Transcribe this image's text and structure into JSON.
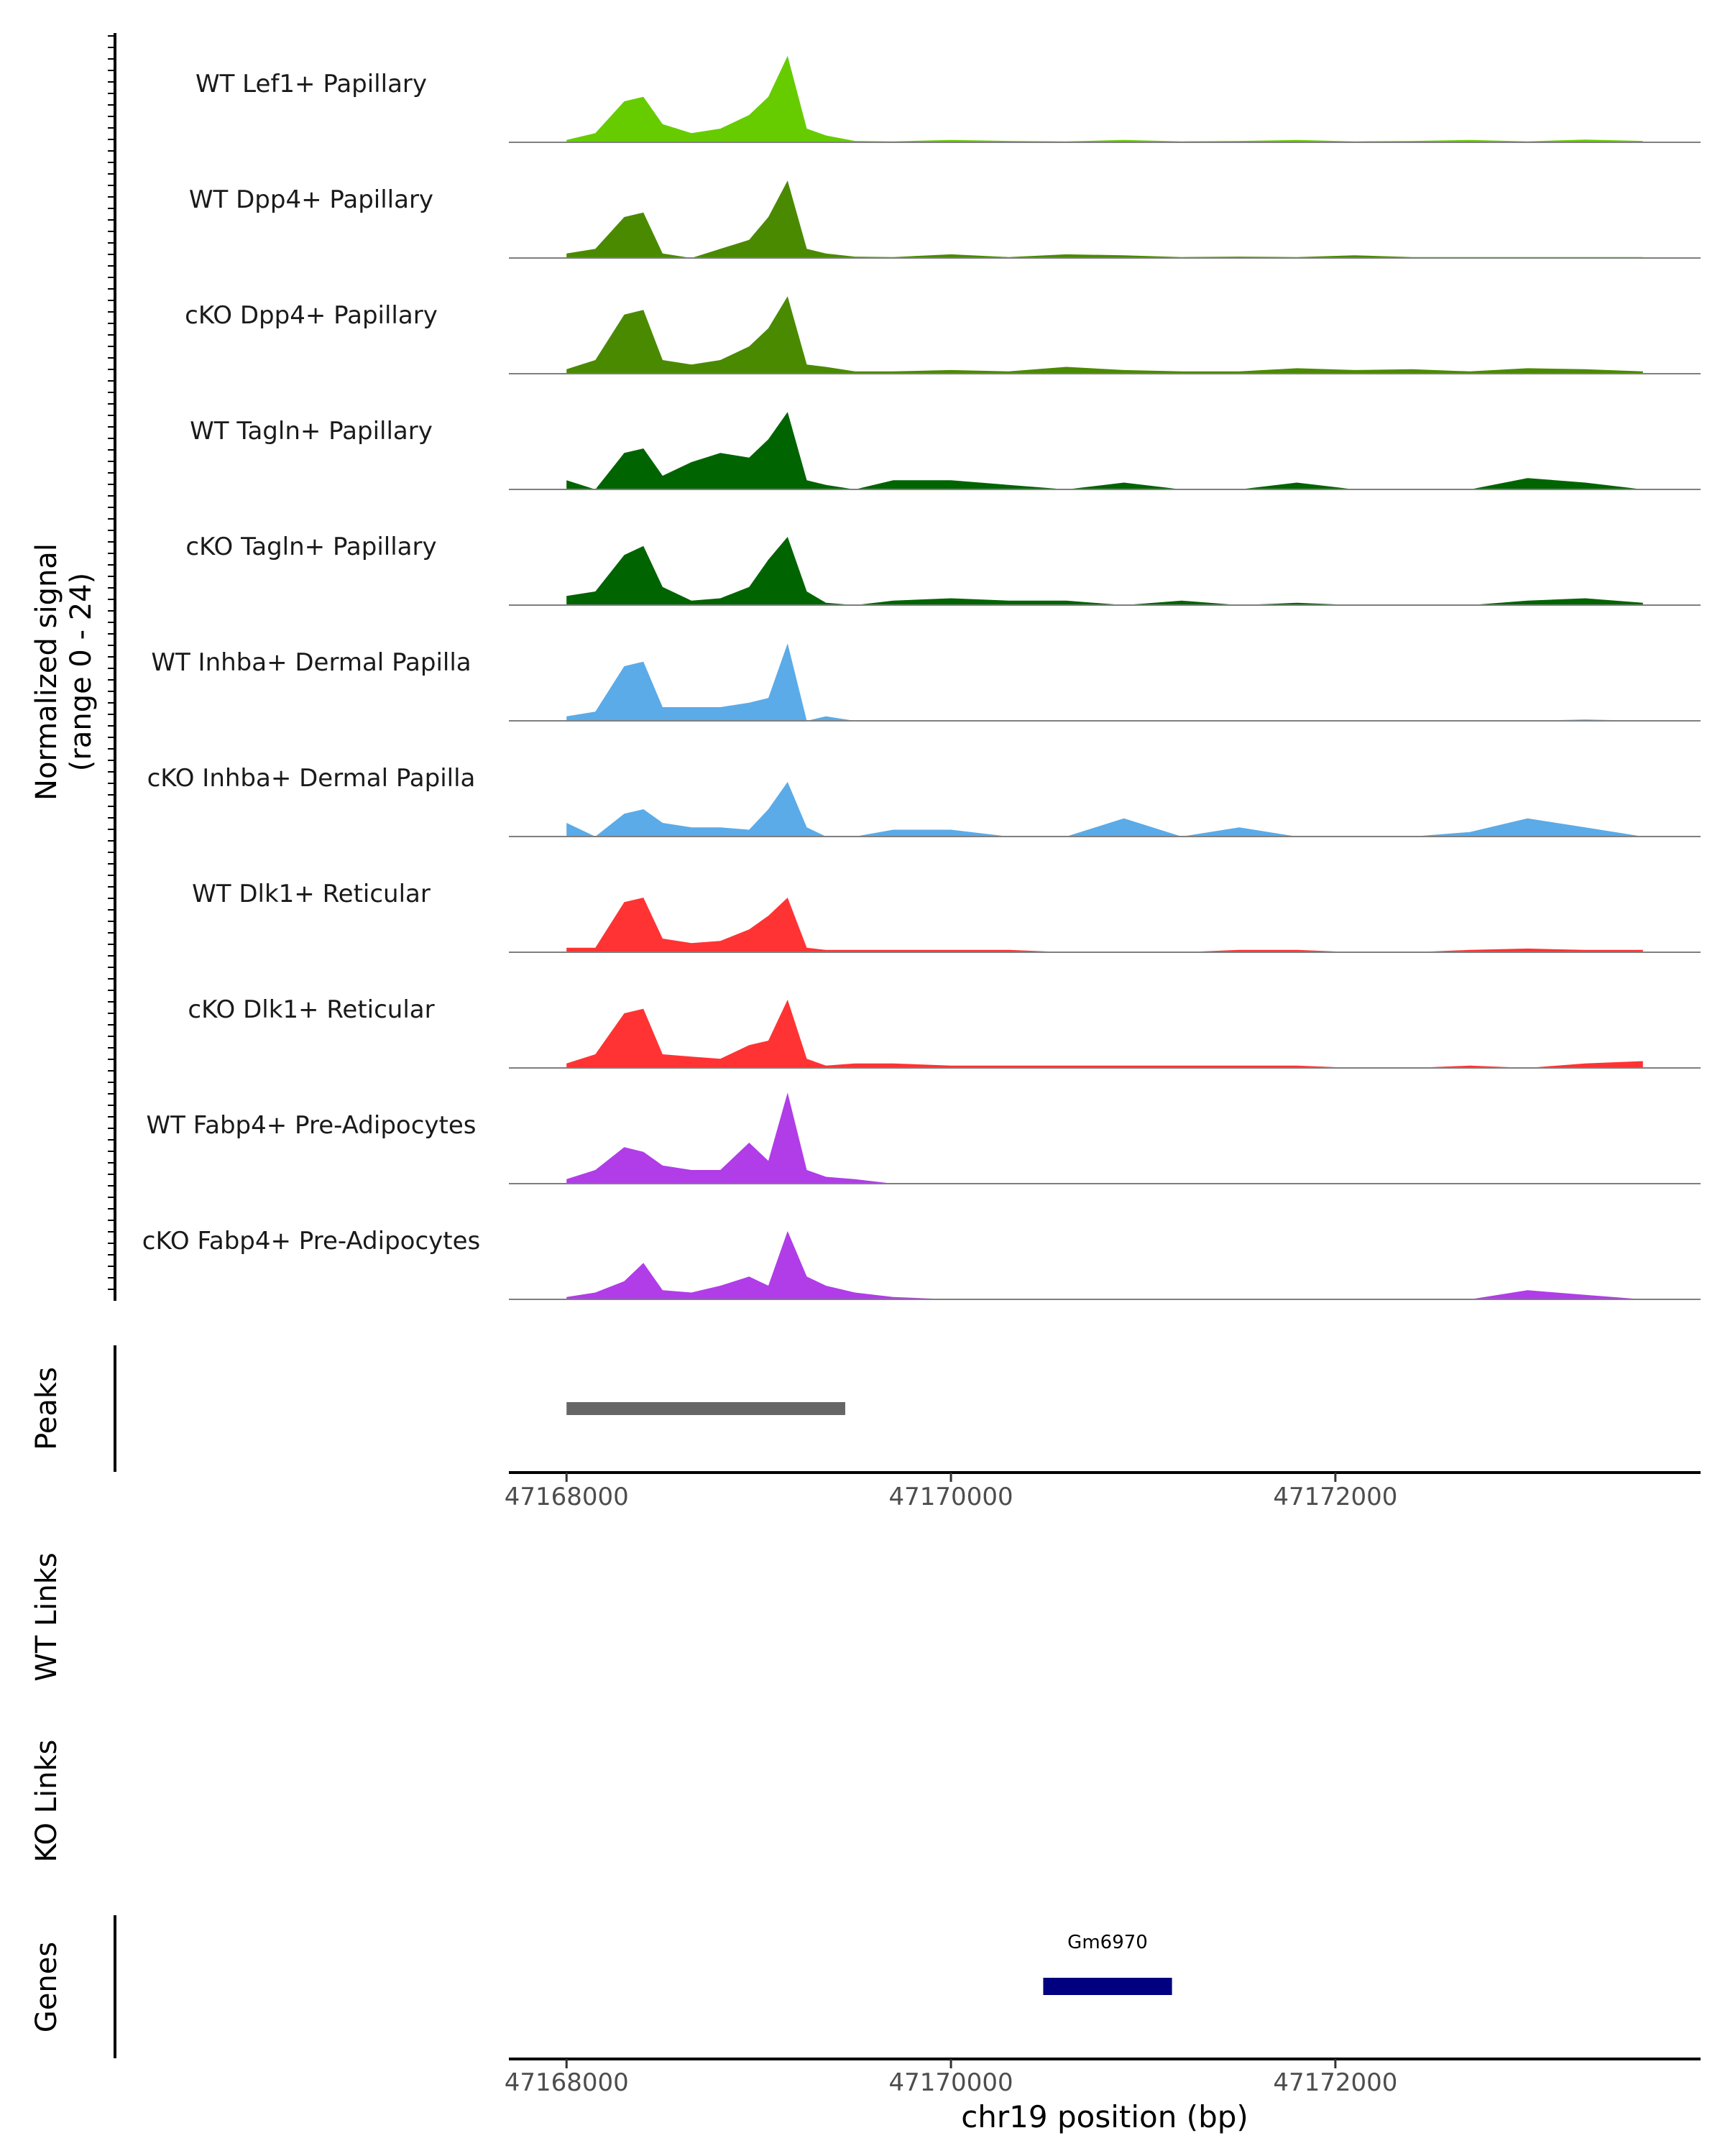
{
  "chart_data": [
    {
      "type": "area",
      "panel": "coverage",
      "ylabel_line1": "Normalized signal",
      "ylabel_line2": "(range 0 - 24)",
      "ylim": [
        0,
        24
      ],
      "xlim": [
        47167700,
        47173900
      ],
      "x_points": [
        47168000,
        47168150,
        47168300,
        47168400,
        47168500,
        47168650,
        47168800,
        47168950,
        47169050,
        47169150,
        47169250,
        47169350,
        47169500,
        47169700,
        47170000,
        47170300,
        47170600,
        47170900,
        47171200,
        47171500,
        47171800,
        47172100,
        47172400,
        47172700,
        47173000,
        47173300,
        47173600
      ],
      "series": [
        {
          "name": "WT Lef1+ Papillary",
          "color": "#66cc00",
          "values": [
            0.5,
            2,
            9,
            10,
            4,
            2,
            3,
            6,
            10,
            19,
            3,
            1.5,
            0.3,
            0.2,
            0.5,
            0.3,
            0.2,
            0.5,
            0.2,
            0.3,
            0.5,
            0.2,
            0.3,
            0.5,
            0.2,
            0.6,
            0.3
          ]
        },
        {
          "name": "WT Dpp4+ Papillary",
          "color": "#4a8a00",
          "values": [
            1,
            2,
            9,
            10,
            1,
            0,
            2,
            4,
            9,
            17,
            2,
            1,
            0.3,
            0.2,
            0.8,
            0.2,
            0.8,
            0.6,
            0.2,
            0.3,
            0.2,
            0.6,
            0.2,
            0.2,
            0.2,
            0.2,
            0.2
          ]
        },
        {
          "name": "cKO Dpp4+ Papillary",
          "color": "#4a8a00",
          "values": [
            1,
            3,
            13,
            14,
            3,
            2,
            3,
            6,
            10,
            17,
            2,
            1.5,
            0.5,
            0.5,
            0.8,
            0.5,
            1.5,
            0.8,
            0.5,
            0.5,
            1.2,
            0.8,
            1,
            0.5,
            1.2,
            1,
            0.5
          ]
        },
        {
          "name": "WT Tagln+ Papillary",
          "color": "#006400",
          "values": [
            2,
            0,
            8,
            9,
            3,
            6,
            8,
            7,
            11,
            17,
            2,
            1,
            0,
            2,
            2,
            1,
            0,
            1.5,
            0,
            0,
            1.5,
            0,
            0,
            0,
            2.5,
            1.5,
            0
          ]
        },
        {
          "name": "cKO Tagln+ Papillary",
          "color": "#006400",
          "values": [
            2,
            3,
            11,
            13,
            4,
            1,
            1.5,
            4,
            10,
            15,
            3,
            0.5,
            0,
            1,
            1.5,
            1,
            1,
            0,
            1,
            0,
            0.5,
            0,
            0,
            0,
            1,
            1.5,
            0.5
          ]
        },
        {
          "name": "WT Inhba+ Dermal Papilla",
          "color": "#5aabe8",
          "values": [
            1,
            2,
            12,
            13,
            3,
            3,
            3,
            4,
            5,
            17,
            0,
            1,
            0,
            0,
            0,
            0,
            0,
            0,
            0,
            0,
            0,
            0,
            0,
            0,
            0,
            0.3,
            0
          ]
        },
        {
          "name": "cKO Inhba+ Dermal Papilla",
          "color": "#5aabe8",
          "values": [
            3,
            0,
            5,
            6,
            3,
            2,
            2,
            1.5,
            6,
            12,
            2,
            0,
            0,
            1.5,
            1.5,
            0,
            0,
            4,
            0,
            2,
            0,
            0,
            0,
            1,
            4,
            2,
            0
          ]
        },
        {
          "name": "WT Dlk1+ Reticular",
          "color": "#ff3333",
          "values": [
            1,
            1,
            11,
            12,
            3,
            2,
            2.5,
            5,
            8,
            12,
            1,
            0.5,
            0.5,
            0.5,
            0.5,
            0.5,
            0,
            0,
            0,
            0.5,
            0.5,
            0,
            0,
            0.5,
            0.8,
            0.5,
            0.5
          ]
        },
        {
          "name": "cKO Dlk1+ Reticular",
          "color": "#ff3333",
          "values": [
            1,
            3,
            12,
            13,
            3,
            2.5,
            2,
            5,
            6,
            15,
            2,
            0.5,
            1,
            1,
            0.5,
            0.5,
            0.5,
            0.5,
            0.5,
            0.5,
            0.5,
            0,
            0,
            0.5,
            0,
            1,
            1.5
          ]
        },
        {
          "name": "WT Fabp4+ Pre-Adipocytes",
          "color": "#b03de8",
          "values": [
            1,
            3,
            8,
            7,
            4,
            3,
            3,
            9,
            5,
            20,
            3,
            1.5,
            1,
            0,
            0,
            0,
            0,
            0,
            0,
            0,
            0,
            0,
            0,
            0,
            0,
            0,
            0
          ]
        },
        {
          "name": "cKO Fabp4+ Pre-Adipocytes",
          "color": "#b03de8",
          "values": [
            0.5,
            1.5,
            4,
            8,
            2,
            1.5,
            3,
            5,
            3,
            15,
            5,
            3,
            1.5,
            0.5,
            0,
            0,
            0,
            0,
            0,
            0,
            0,
            0,
            0,
            0,
            2,
            1,
            0
          ]
        }
      ]
    },
    {
      "type": "bar",
      "panel": "peaks",
      "ylabel": "Peaks",
      "intervals": [
        {
          "start": 47168000,
          "end": 47169450,
          "color": "#666666"
        }
      ],
      "xticks": [
        47168000,
        47170000,
        47172000
      ],
      "xtick_labels": [
        "47168000",
        "47170000",
        "47172000"
      ]
    },
    {
      "type": "bar",
      "panel": "links",
      "wt_label": "WT Links",
      "ko_label": "KO Links"
    },
    {
      "type": "bar",
      "panel": "genes",
      "ylabel": "Genes",
      "genes": [
        {
          "name": "Gm6970",
          "start": 47170480,
          "end": 47171150,
          "color": "#000080"
        }
      ],
      "xticks": [
        47168000,
        47170000,
        47172000
      ],
      "xtick_labels": [
        "47168000",
        "47170000",
        "47172000"
      ],
      "xlabel": "chr19 position (bp)"
    }
  ]
}
